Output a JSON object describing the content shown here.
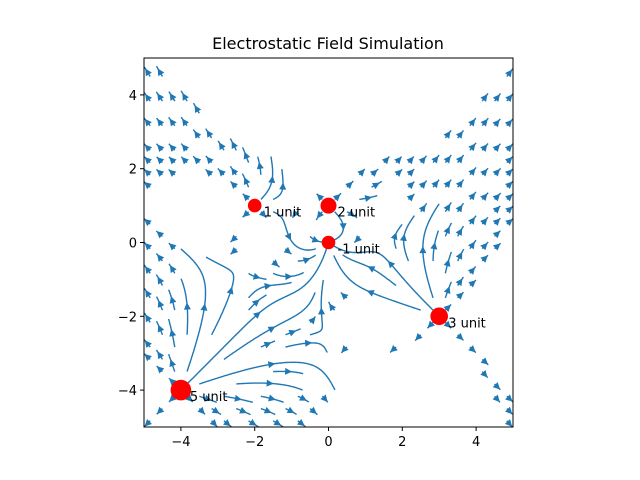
{
  "chart_data": {
    "type": "streamplot",
    "title": "Electrostatic Field Simulation",
    "xlabel": "",
    "ylabel": "",
    "xlim": [
      -5,
      5
    ],
    "ylim": [
      -5,
      5
    ],
    "xticks": [
      -4,
      -2,
      0,
      2,
      4
    ],
    "yticks": [
      -4,
      -2,
      0,
      2,
      4
    ],
    "xtick_labels": [
      "−4",
      "−2",
      "0",
      "2",
      "4"
    ],
    "ytick_labels": [
      "−4",
      "−2",
      "0",
      "2",
      "4"
    ],
    "grid": false,
    "line_color": "#1f77b4",
    "charge_color": "#ff0000",
    "charges": [
      {
        "x": -2,
        "y": 1,
        "q": 1,
        "label": "1 unit"
      },
      {
        "x": 0,
        "y": 1,
        "q": 2,
        "label": "2 unit"
      },
      {
        "x": 0,
        "y": 0,
        "q": -1,
        "label": "-1 unit"
      },
      {
        "x": 3,
        "y": -2,
        "q": 3,
        "label": "3 unit"
      },
      {
        "x": -4,
        "y": -4,
        "q": 5,
        "label": "5 unit"
      }
    ]
  }
}
